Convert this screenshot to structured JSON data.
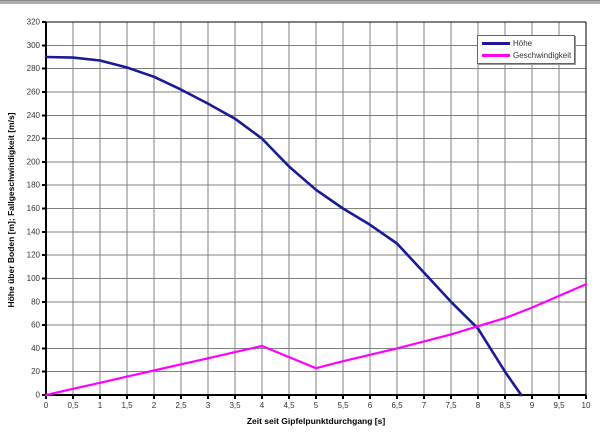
{
  "window": {
    "top_edge_color": "#adadad"
  },
  "chart_data": {
    "type": "line",
    "title": "",
    "xlabel": "Zeit seit Gipfelpunktdurchgang [s]",
    "ylabel": "Höhe über Boden [m]; Fallgeschwindigkeit [m/s]",
    "xlim": [
      0,
      10
    ],
    "ylim": [
      0,
      320
    ],
    "x_tick_step": 0.5,
    "y_tick_step": 20,
    "x_tick_labels": [
      "0",
      "0,5",
      "1",
      "1,5",
      "2",
      "2,5",
      "3",
      "3,5",
      "4",
      "4,5",
      "5",
      "5,5",
      "6",
      "6,5",
      "7",
      "7,5",
      "8",
      "8,5",
      "9",
      "9,5",
      "10"
    ],
    "y_tick_labels": [
      "0",
      "20",
      "40",
      "60",
      "80",
      "100",
      "120",
      "140",
      "160",
      "180",
      "200",
      "220",
      "240",
      "260",
      "280",
      "300",
      "320"
    ],
    "grid": true,
    "grid_color": "#808080",
    "axis_color": "#000000",
    "legend_position": "top-right",
    "series": [
      {
        "name": "Höhe",
        "color": "#1a1a99",
        "width": 2.6,
        "points": [
          [
            0,
            290
          ],
          [
            0.5,
            289.5
          ],
          [
            1,
            287
          ],
          [
            1.5,
            281
          ],
          [
            2,
            273
          ],
          [
            2.5,
            262
          ],
          [
            3,
            250
          ],
          [
            3.5,
            237
          ],
          [
            4,
            220
          ],
          [
            4.5,
            196
          ],
          [
            5,
            176
          ],
          [
            5.5,
            160
          ],
          [
            6,
            146
          ],
          [
            6.5,
            130
          ],
          [
            7,
            105
          ],
          [
            7.5,
            80
          ],
          [
            8,
            57
          ],
          [
            8.5,
            20
          ],
          [
            8.8,
            0
          ]
        ]
      },
      {
        "name": "Geschwindigkeit",
        "color": "#ff00ff",
        "width": 2.2,
        "points": [
          [
            0,
            0
          ],
          [
            0.5,
            5.3
          ],
          [
            1,
            10.5
          ],
          [
            1.5,
            15.8
          ],
          [
            2,
            21
          ],
          [
            2.5,
            26.3
          ],
          [
            3,
            31.5
          ],
          [
            3.5,
            36.8
          ],
          [
            4,
            42
          ],
          [
            4.5,
            32.5
          ],
          [
            5,
            23
          ],
          [
            5.5,
            29
          ],
          [
            6,
            34.5
          ],
          [
            6.5,
            40
          ],
          [
            7,
            46
          ],
          [
            7.5,
            52
          ],
          [
            8,
            59
          ],
          [
            8.5,
            66
          ],
          [
            9,
            75
          ],
          [
            9.5,
            85
          ],
          [
            10,
            95
          ]
        ]
      }
    ]
  }
}
